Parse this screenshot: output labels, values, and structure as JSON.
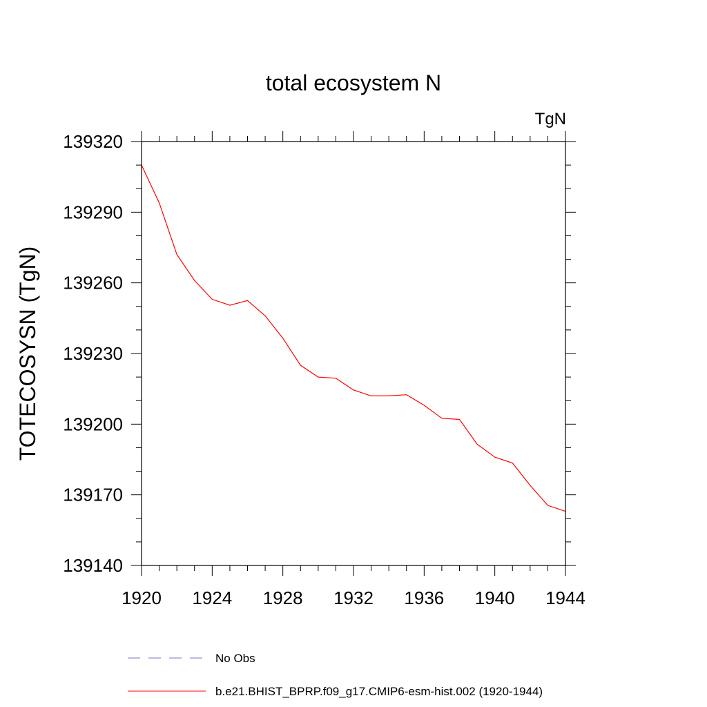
{
  "chart_data": {
    "type": "line",
    "title": "total ecosystem N",
    "units_label": "TgN",
    "ylabel": "TOTECOSYSN  (TgN)",
    "xlabel": "",
    "xlim": [
      1920,
      1944
    ],
    "ylim": [
      139140,
      139320
    ],
    "x_ticks": [
      1920,
      1924,
      1928,
      1932,
      1936,
      1940,
      1944
    ],
    "y_ticks": [
      139140,
      139170,
      139200,
      139230,
      139260,
      139290,
      139320
    ],
    "x_minor_step": 1,
    "y_minor_step": 10,
    "grid": false,
    "series": [
      {
        "name": "b.e21.BHIST_BPRP.f09_g17.CMIP6-esm-hist.002 (1920-1944)",
        "color": "#ff0000",
        "dash": "solid",
        "x": [
          1920,
          1921,
          1922,
          1923,
          1924,
          1925,
          1926,
          1927,
          1928,
          1929,
          1930,
          1931,
          1932,
          1933,
          1934,
          1935,
          1936,
          1937,
          1938,
          1939,
          1940,
          1941,
          1942,
          1943,
          1944
        ],
        "values": [
          139310,
          139294,
          139272,
          139261,
          139253,
          139250.5,
          139252.5,
          139246,
          139236.5,
          139225,
          139220,
          139219.5,
          139214.5,
          139212,
          139212,
          139212.5,
          139208,
          139202.5,
          139202,
          139191.5,
          139186,
          139183.5,
          139174,
          139165.5,
          139163
        ]
      },
      {
        "name": "No Obs",
        "color": "#7b6fc4",
        "dash": "dashed",
        "x": [],
        "values": []
      }
    ],
    "legend": [
      {
        "label": "No Obs",
        "color": "#7b6fc4",
        "style": "dashed"
      },
      {
        "label": "b.e21.BHIST_BPRP.f09_g17.CMIP6-esm-hist.002 (1920-1944)",
        "color": "#ff0000",
        "style": "solid"
      }
    ],
    "legend_position": "bottom"
  }
}
